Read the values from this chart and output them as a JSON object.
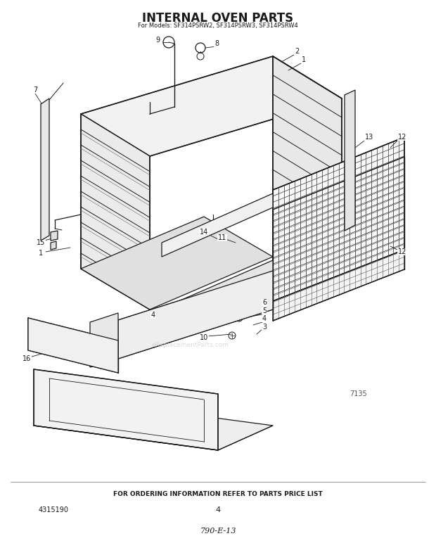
{
  "title": "INTERNAL OVEN PARTS",
  "subtitle": "For Models: SF314PSRW2, SF314PSRW3, SF314PSRW4",
  "bottom_text": "FOR ORDERING INFORMATION REFER TO PARTS PRICE LIST",
  "bottom_left": "4315190",
  "bottom_center": "4",
  "bottom_italic": "790-E-13",
  "diagram_number": "7135",
  "bg_color": "#ffffff",
  "lc": "#1a1a1a",
  "watermark": "eReplacementParts.com"
}
